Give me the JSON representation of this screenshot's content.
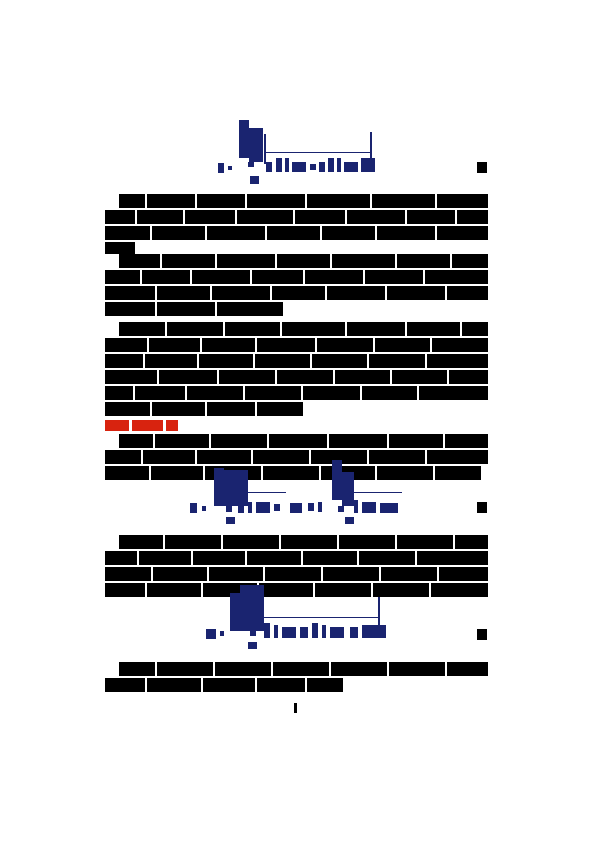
{
  "document": {
    "kind": "redacted-scientific-page",
    "accent_colors": {
      "equation": "#1a2470",
      "section_heading": "#d8230f",
      "text_redaction": "#000000"
    },
    "paragraphs": [
      {
        "id": "p1",
        "lines": 4
      },
      {
        "id": "p2",
        "lines": 4
      },
      {
        "id": "p3",
        "lines": 6
      },
      {
        "id": "p4",
        "lines": 3
      },
      {
        "id": "p5",
        "lines": 4
      },
      {
        "id": "p6",
        "lines": 2
      }
    ],
    "equations": [
      {
        "id": "eq1",
        "has_number": true
      },
      {
        "id": "eq2",
        "has_number": true
      },
      {
        "id": "eq3",
        "has_number": true
      }
    ],
    "section_heading_segments": 3
  }
}
